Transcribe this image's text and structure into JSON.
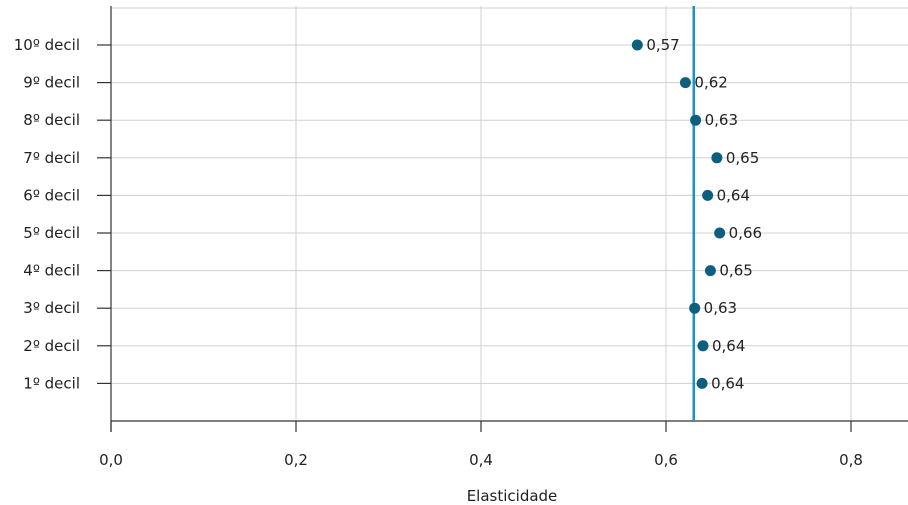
{
  "chart_data": {
    "type": "scatter",
    "categories": [
      "1º decil",
      "2º decil",
      "3º decil",
      "4º decil",
      "5º decil",
      "6º decil",
      "7º decil",
      "8º decil",
      "9º decil",
      "10º decil"
    ],
    "values": [
      0.64,
      0.64,
      0.63,
      0.65,
      0.66,
      0.64,
      0.65,
      0.63,
      0.62,
      0.57
    ],
    "plotted_values": [
      0.639,
      0.64,
      0.631,
      0.648,
      0.658,
      0.645,
      0.655,
      0.632,
      0.621,
      0.569
    ],
    "value_labels": [
      "0,64",
      "0,64",
      "0,63",
      "0,65",
      "0,66",
      "0,64",
      "0,65",
      "0,63",
      "0,62",
      "0,57"
    ],
    "reference_line": 0.63,
    "xlabel": "Elasticidade",
    "xlim": [
      0,
      0.87
    ],
    "xticks": [
      0,
      0.2,
      0.4,
      0.6,
      0.8
    ],
    "xtick_labels": [
      "0,0",
      "0,2",
      "0,4",
      "0,6",
      "0,8"
    ],
    "grid": true,
    "colors": {
      "point": "#0d5f7f",
      "reference_line": "#1b93c0",
      "grid": "#d0d0d0"
    }
  }
}
